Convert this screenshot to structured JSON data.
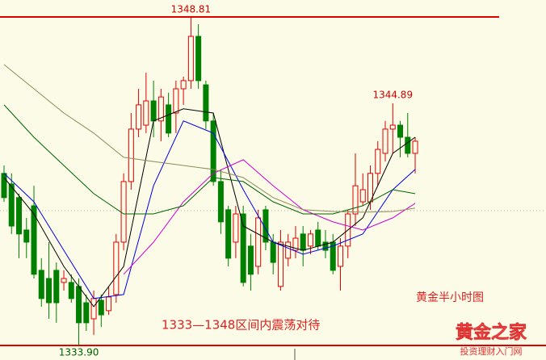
{
  "chart_data": {
    "type": "candlestick",
    "open": [
      1341.71,
      1341.23,
      1340.61,
      1339.14,
      1340.24,
      1337.31,
      1336.94,
      1337.31,
      1336.76,
      1336.76,
      1336.58,
      1335.84,
      1335.11,
      1335.95,
      1335.48,
      1336.21,
      1338.59,
      1341.34,
      1343.72,
      1343.9,
      1345.0,
      1344.09,
      1344.82,
      1344.45,
      1345.55,
      1345.92,
      1347.93,
      1345.73,
      1344.09,
      1341.34,
      1340.06,
      1338.59,
      1339.87,
      1338.41,
      1337.49,
      1340.06,
      1338.59,
      1336.58,
      1337.86,
      1338.22,
      1338.96,
      1338.41,
      1339.14,
      1338.59,
      1338.59,
      1337.49,
      1338.41,
      1339.87,
      1340.42,
      1340.42,
      1341.71,
      1342.62,
      1343.72,
      1343.9,
      1343.35,
      1342.62
    ],
    "high": [
      1342.07,
      1341.71,
      1340.79,
      1339.69,
      1341.15,
      1337.86,
      1338.59,
      1337.67,
      1337.31,
      1337.13,
      1336.94,
      1336.21,
      1336.39,
      1336.21,
      1336.58,
      1338.96,
      1341.71,
      1344.45,
      1345.55,
      1346.28,
      1345.92,
      1345.55,
      1345.37,
      1345.92,
      1346.1,
      1348.81,
      1348.48,
      1345.92,
      1344.45,
      1341.89,
      1340.24,
      1340.24,
      1340.24,
      1338.96,
      1340.06,
      1340.24,
      1338.96,
      1339.14,
      1338.96,
      1339.32,
      1339.32,
      1339.14,
      1339.51,
      1339.14,
      1338.96,
      1338.77,
      1340.06,
      1342.62,
      1341.71,
      1342.07,
      1343.17,
      1344.09,
      1344.89,
      1344.09,
      1344.45,
      1343.35
    ],
    "low": [
      1340.42,
      1338.96,
      1337.86,
      1337.86,
      1336.94,
      1335.66,
      1335.11,
      1334.93,
      1336.39,
      1335.84,
      1333.9,
      1334.56,
      1334.38,
      1334.74,
      1335.29,
      1335.84,
      1338.22,
      1340.97,
      1343.35,
      1343.54,
      1343.35,
      1343.17,
      1343.35,
      1343.54,
      1344.82,
      1345.55,
      1345.55,
      1343.72,
      1341.15,
      1338.96,
      1337.49,
      1337.86,
      1336.58,
      1336.39,
      1337.13,
      1338.22,
      1337.13,
      1336.39,
      1337.49,
      1337.86,
      1337.49,
      1338.04,
      1338.22,
      1337.86,
      1337.13,
      1336.39,
      1337.86,
      1339.32,
      1340.24,
      1340.06,
      1341.15,
      1342.25,
      1342.62,
      1342.44,
      1342.44,
      1341.71
    ],
    "close": [
      1340.61,
      1339.32,
      1338.96,
      1338.59,
      1337.13,
      1336.03,
      1335.84,
      1335.84,
      1336.94,
      1336.03,
      1334.93,
      1334.93,
      1336.03,
      1335.29,
      1336.1,
      1338.59,
      1341.34,
      1343.72,
      1344.82,
      1345.0,
      1344.09,
      1345.18,
      1343.54,
      1345.55,
      1345.92,
      1347.93,
      1345.92,
      1344.09,
      1341.34,
      1339.51,
      1337.86,
      1339.87,
      1336.76,
      1337.13,
      1339.69,
      1338.59,
      1337.67,
      1338.59,
      1338.59,
      1338.77,
      1338.22,
      1338.96,
      1338.41,
      1338.22,
      1337.31,
      1338.41,
      1339.87,
      1341.15,
      1340.97,
      1341.71,
      1342.8,
      1343.72,
      1343.9,
      1343.35,
      1342.62,
      1343.17
    ],
    "up_color": "#e00000",
    "down_color": "#008000",
    "xlim": [
      -0.54,
      72.5
    ],
    "ylim": [
      1333.24,
      1349.58
    ],
    "lines": [
      {
        "color": "#000000",
        "x": [
          0,
          4,
          8,
          12,
          16,
          20,
          24,
          28,
          32,
          36,
          40,
          44,
          48,
          52,
          55
        ],
        "values": [
          1341.52,
          1339.87,
          1337.49,
          1335.66,
          1337.49,
          1344.09,
          1344.64,
          1344.45,
          1339.32,
          1338.59,
          1338.22,
          1338.59,
          1339.69,
          1342.62,
          1343.35
        ]
      },
      {
        "color": "#0000ee",
        "x": [
          0,
          4,
          8,
          12,
          16,
          20,
          24,
          28,
          32,
          36,
          40,
          44,
          48,
          52,
          55
        ],
        "values": [
          1341.71,
          1340.42,
          1338.22,
          1336.03,
          1336.21,
          1341.15,
          1344.09,
          1343.54,
          1340.97,
          1338.59,
          1338.04,
          1338.41,
          1338.96,
          1340.97,
          1341.89
        ]
      },
      {
        "color": "#d000d0",
        "x": [
          16,
          20,
          24,
          28,
          32,
          36,
          40,
          44,
          48,
          52,
          55
        ],
        "values": [
          1337.13,
          1338.59,
          1340.42,
          1341.71,
          1342.33,
          1341.15,
          1340.06,
          1339.51,
          1339.14,
          1339.69,
          1340.35
        ]
      },
      {
        "color": "#006400",
        "x": [
          0,
          4,
          8,
          12,
          16,
          20,
          24,
          28,
          32,
          36,
          40,
          44,
          48,
          52,
          55
        ],
        "values": [
          1344.82,
          1343.35,
          1342.07,
          1340.79,
          1339.87,
          1339.87,
          1340.24,
          1341.52,
          1341.34,
          1340.42,
          1339.87,
          1339.87,
          1340.24,
          1340.97,
          1340.79
        ]
      },
      {
        "color": "#8c8c5a",
        "x": [
          0,
          4,
          8,
          12,
          16,
          20,
          24,
          28,
          32,
          36,
          40,
          44,
          48,
          52,
          55
        ],
        "values": [
          1346.65,
          1345.55,
          1344.45,
          1343.54,
          1342.44,
          1342.25,
          1342.07,
          1341.89,
          1341.52,
          1340.61,
          1340.06,
          1339.98,
          1339.95,
          1339.98,
          1340.13
        ]
      }
    ],
    "reference_line": 1340.02,
    "price_labels": [
      1348.81,
      1344.89,
      {
        "value": 1333.9,
        "label": "1333.90"
      }
    ],
    "annotations": [
      "1333—1348区间内震荡对待",
      "黄金半小时图"
    ],
    "watermark": {
      "title": "黄金之家",
      "subtitle": "投资理财入门网"
    }
  }
}
